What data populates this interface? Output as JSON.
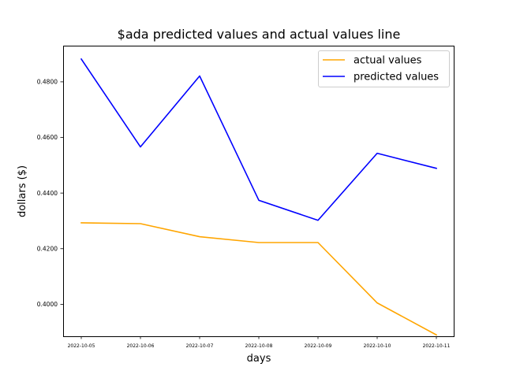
{
  "chart_data": {
    "type": "line",
    "title": "$ada predicted values and actual values line",
    "xlabel": "days",
    "ylabel": "dollars ($)",
    "categories": [
      "2022-10-05",
      "2022-10-06",
      "2022-10-07",
      "2022-10-08",
      "2022-10-09",
      "2022-10-10",
      "2022-10-11"
    ],
    "yticks": [
      "0.4000",
      "0.4200",
      "0.4400",
      "0.4600",
      "0.4800"
    ],
    "ylim": [
      0.3885,
      0.493
    ],
    "grid": false,
    "legend_position": "upper right",
    "series": [
      {
        "name": "actual values",
        "color": "#ffa500",
        "values": [
          0.4293,
          0.429,
          0.4243,
          0.4222,
          0.4222,
          0.4005,
          0.389
        ]
      },
      {
        "name": "predicted values",
        "color": "#0000ff",
        "values": [
          0.4882,
          0.4566,
          0.4821,
          0.4374,
          0.4302,
          0.4543,
          0.4489
        ]
      }
    ]
  }
}
